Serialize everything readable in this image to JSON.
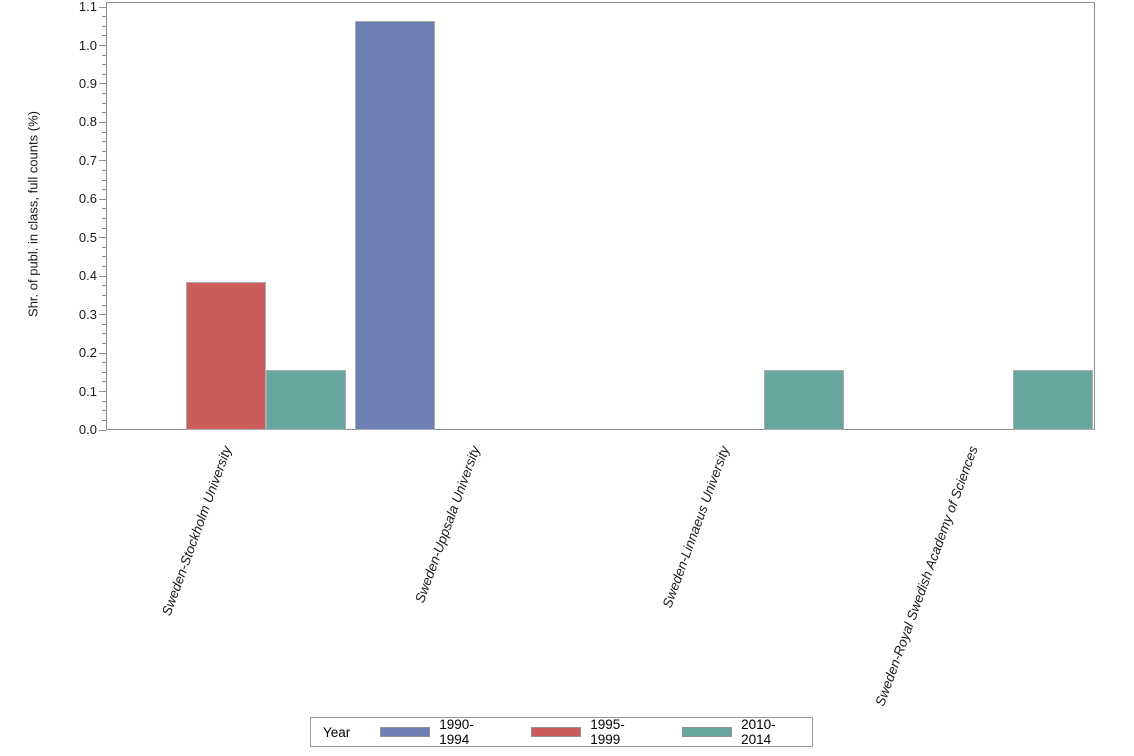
{
  "chart_data": {
    "type": "bar",
    "title": "",
    "xlabel": "",
    "ylabel": "Shr. of publ. in class, full counts (%)",
    "categories": [
      "Sweden-Stockholm University",
      "Sweden-Uppsala University",
      "Sweden-Linnaeus University",
      "Sweden-Royal Swedish Academy of Sciences"
    ],
    "series": [
      {
        "name": "1990-1994",
        "color": "#6e7fb4",
        "values": [
          0,
          1.064,
          0,
          0
        ]
      },
      {
        "name": "1995-1999",
        "color": "#cc5b5b",
        "values": [
          0.384,
          0,
          0,
          0
        ]
      },
      {
        "name": "2010-2014",
        "color": "#67a79f",
        "values": [
          0.156,
          0,
          0.156,
          0.156
        ]
      }
    ],
    "legend_title": "Year",
    "legend_position": "bottom",
    "ylim": [
      0,
      1.1
    ],
    "y_tick_values": [
      0.0,
      0.1,
      0.2,
      0.3,
      0.4,
      0.5,
      0.6,
      0.7,
      0.8,
      0.9,
      1.0,
      1.1
    ],
    "y_tick_labels": [
      "0.0",
      "0.1",
      "0.2",
      "0.3",
      "0.4",
      "0.5",
      "0.6",
      "0.7",
      "0.8",
      "0.9",
      "1.0",
      "1.1"
    ],
    "y_minor_tick_step": 0.025,
    "grid": false,
    "bar_orientation": "vertical"
  }
}
